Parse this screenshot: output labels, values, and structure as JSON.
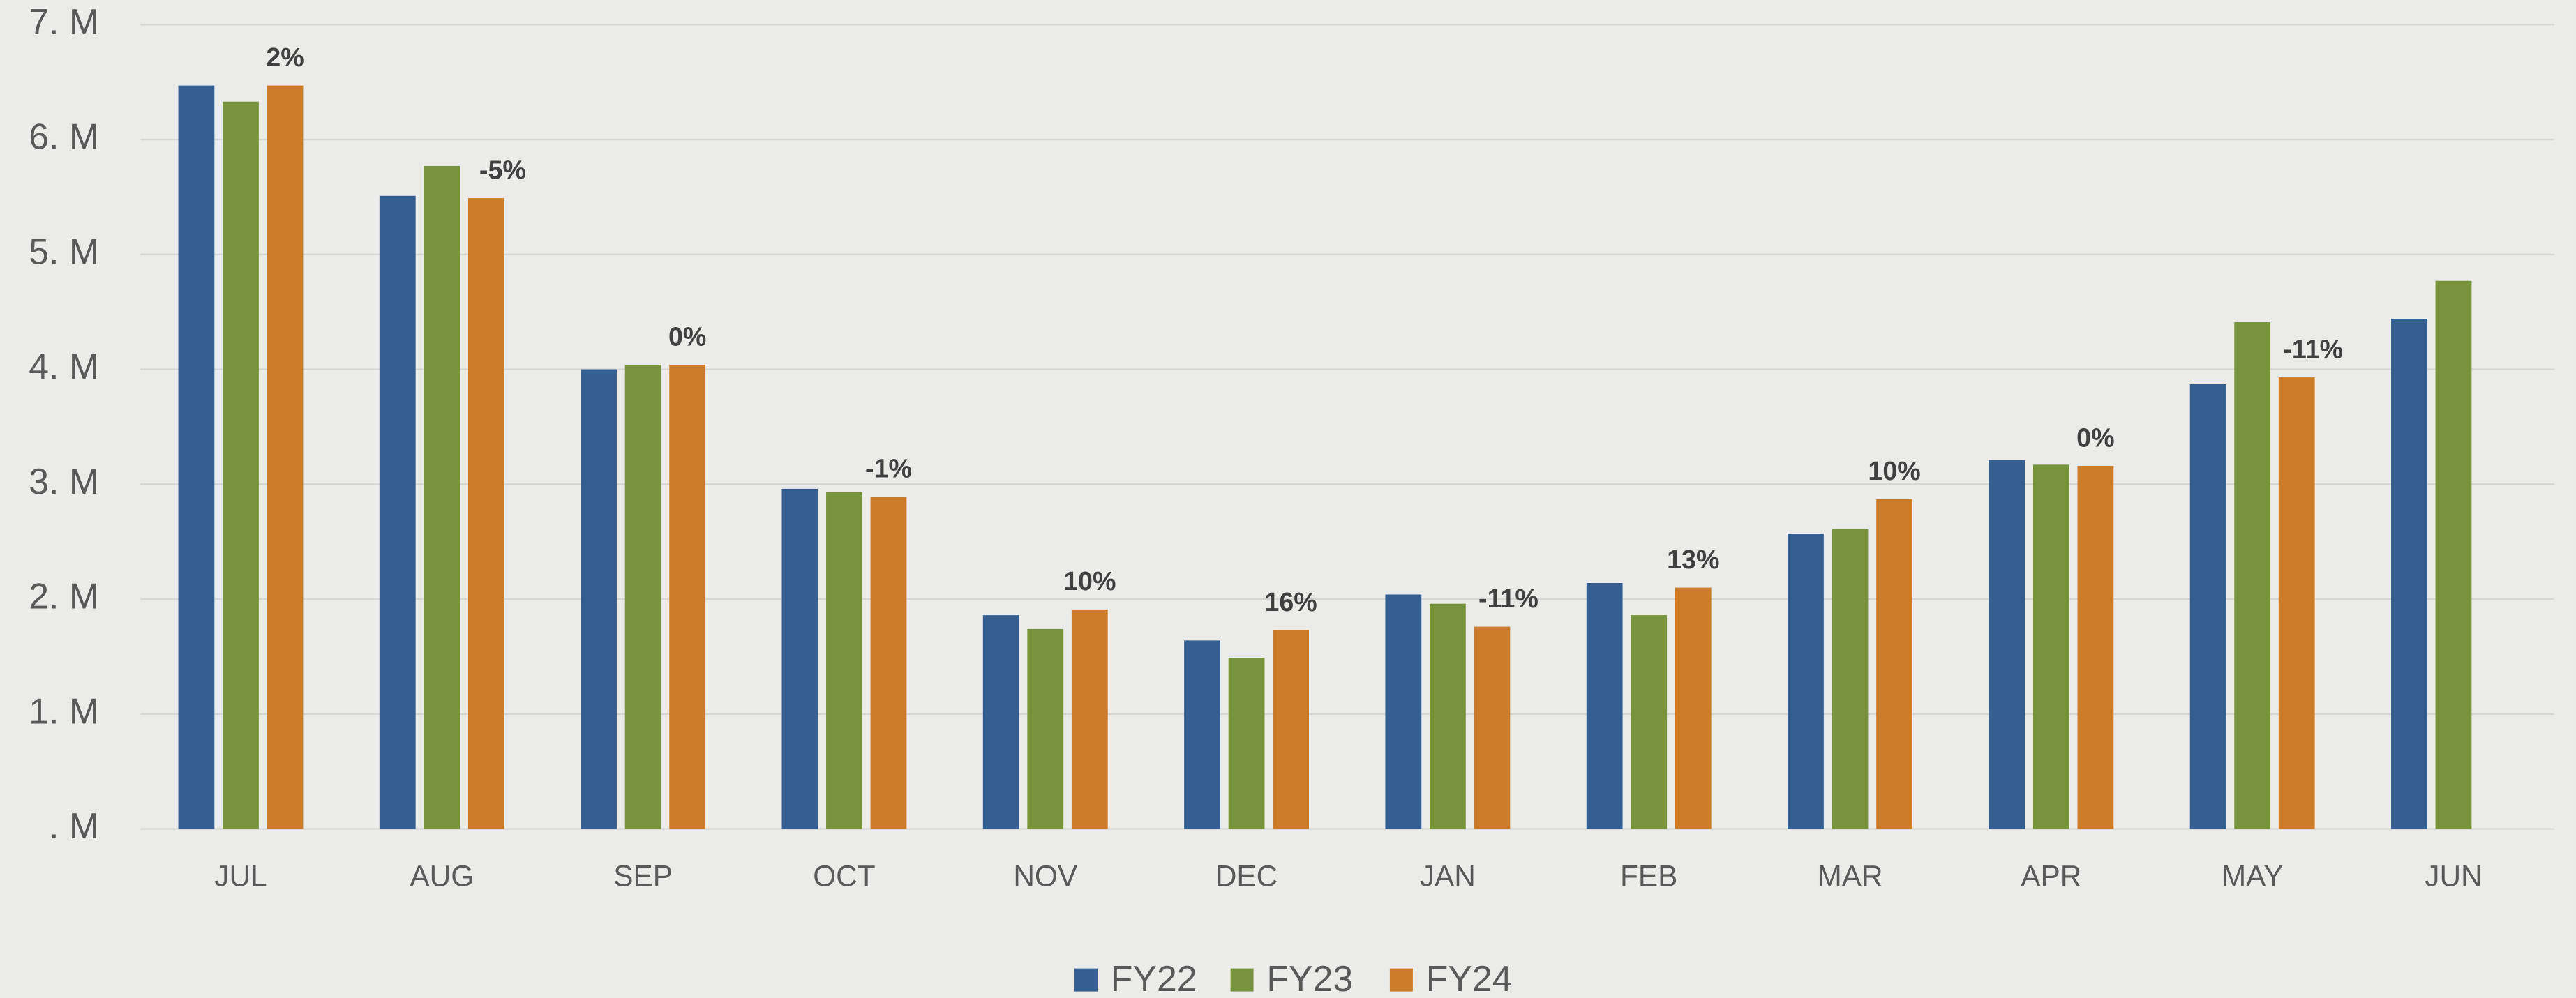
{
  "chart_data": {
    "type": "bar",
    "categories": [
      "JUL",
      "AUG",
      "SEP",
      "OCT",
      "NOV",
      "DEC",
      "JAN",
      "FEB",
      "MAR",
      "APR",
      "MAY",
      "JUN"
    ],
    "series": [
      {
        "name": "FY22",
        "color": "#365f91",
        "values": [
          6.47,
          5.51,
          4.0,
          2.96,
          1.86,
          1.64,
          2.04,
          2.14,
          2.57,
          3.21,
          3.87,
          4.44
        ]
      },
      {
        "name": "FY23",
        "color": "#77933c",
        "values": [
          6.33,
          5.77,
          4.04,
          2.93,
          1.74,
          1.49,
          1.96,
          1.86,
          2.61,
          3.17,
          4.41,
          4.77
        ]
      },
      {
        "name": "FY24",
        "color": "#cc7b29",
        "values": [
          6.47,
          5.49,
          4.04,
          2.89,
          1.91,
          1.73,
          1.76,
          2.1,
          2.87,
          3.16,
          3.93,
          null
        ],
        "change_labels": [
          "2%",
          "-5%",
          "0%",
          "-1%",
          "10%",
          "16%",
          "-11%",
          "13%",
          "10%",
          "0%",
          "-11%",
          null
        ]
      }
    ],
    "ylim": [
      0,
      7
    ],
    "yticks": [
      {
        "value": 0,
        "label": ". M"
      },
      {
        "value": 1,
        "label": "1. M"
      },
      {
        "value": 2,
        "label": "2. M"
      },
      {
        "value": 3,
        "label": "3. M"
      },
      {
        "value": 4,
        "label": "4. M"
      },
      {
        "value": 5,
        "label": "5. M"
      },
      {
        "value": 6,
        "label": "6. M"
      },
      {
        "value": 7,
        "label": "7. M"
      }
    ],
    "grid": true,
    "legend": "bottom"
  }
}
